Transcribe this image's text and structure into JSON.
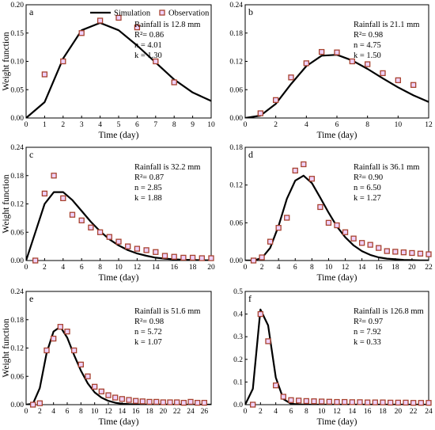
{
  "legend": {
    "simulation": "Simulation",
    "observation": "Observation"
  },
  "colors": {
    "simulation": "#000000",
    "marker_edge": "#a8422e",
    "marker_fill": "#efd2ff"
  },
  "chart_data": [
    {
      "type": "line",
      "panel": "a",
      "info": [
        "Rainfall is 12.8 mm",
        "R²= 0.86",
        "n = 4.01",
        "k = 1.30"
      ],
      "xlabel": "Time (day)",
      "ylabel": "Weight function",
      "xlim": [
        0,
        10
      ],
      "ylim": [
        0,
        0.2
      ],
      "xticks": [
        0,
        1,
        2,
        3,
        4,
        5,
        6,
        7,
        8,
        9,
        10
      ],
      "yticks": [
        0.0,
        0.05,
        0.1,
        0.15,
        0.2
      ],
      "ytick_labels": [
        "0.00",
        "0.05",
        "0.10",
        "0.15",
        "0.20"
      ],
      "series": [
        {
          "name": "Simulation",
          "x": [
            0,
            1,
            2,
            3,
            4,
            5,
            6,
            7,
            8,
            9,
            10
          ],
          "y": [
            0.0,
            0.028,
            0.105,
            0.155,
            0.168,
            0.155,
            0.128,
            0.098,
            0.068,
            0.045,
            0.03
          ]
        },
        {
          "name": "Observation",
          "x": [
            1,
            2,
            3,
            4,
            5,
            6,
            7,
            8
          ],
          "y": [
            0.077,
            0.1,
            0.15,
            0.172,
            0.177,
            0.16,
            0.1,
            0.063
          ]
        }
      ]
    },
    {
      "type": "line",
      "panel": "b",
      "info": [
        "Rainfall is 21.1 mm",
        "R²= 0.98",
        "n = 4.75",
        "k = 1.50"
      ],
      "xlabel": "Time (day)",
      "ylabel": "",
      "xlim": [
        0,
        12
      ],
      "ylim": [
        0,
        0.24
      ],
      "xticks": [
        0,
        2,
        4,
        6,
        8,
        10,
        12
      ],
      "yticks": [
        0.0,
        0.06,
        0.12,
        0.18,
        0.24
      ],
      "ytick_labels": [
        "0.00",
        "0.06",
        "0.12",
        "0.18",
        "0.24"
      ],
      "series": [
        {
          "name": "Simulation",
          "x": [
            0,
            1,
            2,
            3,
            4,
            5,
            6,
            7,
            8,
            9,
            10,
            11,
            12
          ],
          "y": [
            0.0,
            0.005,
            0.03,
            0.072,
            0.11,
            0.132,
            0.134,
            0.122,
            0.104,
            0.084,
            0.065,
            0.048,
            0.034
          ]
        },
        {
          "name": "Observation",
          "x": [
            1,
            2,
            3,
            4,
            5,
            6,
            7,
            8,
            9,
            10,
            11
          ],
          "y": [
            0.01,
            0.038,
            0.086,
            0.116,
            0.14,
            0.139,
            0.12,
            0.114,
            0.095,
            0.08,
            0.07
          ]
        }
      ]
    },
    {
      "type": "line",
      "panel": "c",
      "info": [
        "Rainfall is 32.2 mm",
        "R²= 0.87",
        "n = 2.85",
        "k = 1.88"
      ],
      "xlabel": "Time (day)",
      "ylabel": "Weight function",
      "xlim": [
        0,
        20
      ],
      "ylim": [
        0,
        0.24
      ],
      "xticks": [
        0,
        2,
        4,
        6,
        8,
        10,
        12,
        14,
        16,
        18,
        20
      ],
      "yticks": [
        0.0,
        0.06,
        0.12,
        0.18,
        0.24
      ],
      "ytick_labels": [
        "0.00",
        "0.06",
        "0.12",
        "0.18",
        "0.24"
      ],
      "series": [
        {
          "name": "Simulation",
          "x": [
            0,
            1,
            2,
            3,
            4,
            5,
            6,
            7,
            8,
            9,
            10,
            11,
            12,
            13,
            14,
            15,
            16,
            17,
            18,
            19,
            20
          ],
          "y": [
            0.0,
            0.06,
            0.12,
            0.145,
            0.145,
            0.128,
            0.105,
            0.082,
            0.062,
            0.045,
            0.032,
            0.022,
            0.015,
            0.01,
            0.006,
            0.004,
            0.0025,
            0.0015,
            0.001,
            0.0006,
            0.0004
          ]
        },
        {
          "name": "Observation",
          "x": [
            1,
            2,
            3,
            4,
            5,
            6,
            7,
            8,
            9,
            10,
            11,
            12,
            13,
            14,
            15,
            16,
            17,
            18,
            19,
            20
          ],
          "y": [
            0.0,
            0.142,
            0.18,
            0.132,
            0.097,
            0.085,
            0.07,
            0.06,
            0.05,
            0.04,
            0.03,
            0.025,
            0.022,
            0.018,
            0.01,
            0.008,
            0.006,
            0.006,
            0.005,
            0.005
          ]
        }
      ]
    },
    {
      "type": "line",
      "panel": "d",
      "info": [
        "Rainfall is 36.1 mm",
        "R²= 0.90",
        "n = 6.50",
        "k = 1.27"
      ],
      "xlabel": "Time (day)",
      "ylabel": "",
      "xlim": [
        0,
        22
      ],
      "ylim": [
        0,
        0.18
      ],
      "xticks": [
        0,
        2,
        4,
        6,
        8,
        10,
        12,
        14,
        16,
        18,
        20,
        22
      ],
      "yticks": [
        0.0,
        0.06,
        0.12,
        0.18
      ],
      "ytick_labels": [
        "0.00",
        "0.06",
        "0.12",
        "0.18"
      ],
      "series": [
        {
          "name": "Simulation",
          "x": [
            0,
            1,
            2,
            3,
            4,
            5,
            6,
            7,
            8,
            9,
            10,
            11,
            12,
            13,
            14,
            15,
            16,
            17,
            18,
            19,
            20,
            21,
            22
          ],
          "y": [
            0.0,
            0.0,
            0.004,
            0.02,
            0.055,
            0.098,
            0.127,
            0.135,
            0.123,
            0.1,
            0.076,
            0.054,
            0.037,
            0.024,
            0.015,
            0.009,
            0.005,
            0.003,
            0.002,
            0.001,
            0.0006,
            0.0003,
            0.0002
          ]
        },
        {
          "name": "Observation",
          "x": [
            1,
            2,
            3,
            4,
            5,
            6,
            7,
            8,
            9,
            10,
            11,
            12,
            13,
            14,
            15,
            16,
            17,
            18,
            19,
            20,
            21,
            22
          ],
          "y": [
            0.0,
            0.005,
            0.03,
            0.052,
            0.068,
            0.143,
            0.153,
            0.13,
            0.085,
            0.06,
            0.056,
            0.045,
            0.035,
            0.028,
            0.025,
            0.02,
            0.015,
            0.014,
            0.013,
            0.012,
            0.011,
            0.01
          ]
        }
      ]
    },
    {
      "type": "line",
      "panel": "e",
      "info": [
        "Rainfall is 51.6 mm",
        "R²= 0.98",
        "n = 5.72",
        "k = 1.07"
      ],
      "xlabel": "Time (day)",
      "ylabel": "Weight function",
      "xlim": [
        0,
        27
      ],
      "ylim": [
        0,
        0.24
      ],
      "xticks": [
        0,
        2,
        4,
        6,
        8,
        10,
        12,
        14,
        16,
        18,
        20,
        22,
        24,
        26
      ],
      "yticks": [
        0.0,
        0.06,
        0.12,
        0.18,
        0.24
      ],
      "ytick_labels": [
        "0.00",
        "0.06",
        "0.12",
        "0.18",
        "0.24"
      ],
      "series": [
        {
          "name": "Simulation",
          "x": [
            0,
            1,
            2,
            3,
            4,
            5,
            6,
            7,
            8,
            9,
            10,
            11,
            12,
            13,
            14,
            15,
            16,
            17,
            18,
            20,
            22,
            24,
            26,
            27
          ],
          "y": [
            0.0,
            0.002,
            0.035,
            0.11,
            0.155,
            0.165,
            0.142,
            0.105,
            0.072,
            0.045,
            0.026,
            0.015,
            0.008,
            0.004,
            0.002,
            0.001,
            0.0006,
            0.0003,
            0.0002,
            0.0001,
            0.0,
            0.0,
            0.0,
            0.0
          ]
        },
        {
          "name": "Observation",
          "x": [
            1,
            2,
            3,
            4,
            5,
            6,
            7,
            8,
            9,
            10,
            11,
            12,
            13,
            14,
            15,
            16,
            17,
            18,
            19,
            20,
            21,
            22,
            23,
            24,
            25,
            26
          ],
          "y": [
            0.0,
            0.003,
            0.115,
            0.14,
            0.165,
            0.155,
            0.115,
            0.085,
            0.06,
            0.038,
            0.028,
            0.02,
            0.015,
            0.012,
            0.01,
            0.008,
            0.007,
            0.006,
            0.006,
            0.005,
            0.005,
            0.005,
            0.004,
            0.006,
            0.004,
            0.004
          ]
        }
      ]
    },
    {
      "type": "line",
      "panel": "f",
      "info": [
        "Rainfall is 126.8 mm",
        "R²= 0.97",
        "n = 7.92",
        "k = 0.33"
      ],
      "xlabel": "Time (day)",
      "ylabel": "",
      "xlim": [
        0,
        24
      ],
      "ylim": [
        0,
        0.5
      ],
      "xticks": [
        0,
        2,
        4,
        6,
        8,
        10,
        12,
        14,
        16,
        18,
        20,
        22,
        24
      ],
      "yticks": [
        0.0,
        0.1,
        0.2,
        0.3,
        0.4,
        0.5
      ],
      "ytick_labels": [
        "0.0",
        "0.1",
        "0.2",
        "0.3",
        "0.4",
        "0.5"
      ],
      "series": [
        {
          "name": "Simulation",
          "x": [
            0,
            1,
            2,
            3,
            4,
            5,
            6,
            7,
            8,
            10,
            12,
            24
          ],
          "y": [
            0.0,
            0.07,
            0.42,
            0.35,
            0.12,
            0.025,
            0.004,
            0.001,
            0.0,
            0.0,
            0.0,
            0.0
          ]
        },
        {
          "name": "Observation",
          "x": [
            1,
            2,
            3,
            4,
            5,
            6,
            7,
            8,
            9,
            10,
            11,
            12,
            13,
            14,
            15,
            16,
            17,
            18,
            19,
            20,
            21,
            22,
            23,
            24
          ],
          "y": [
            0.0,
            0.4,
            0.28,
            0.085,
            0.035,
            0.02,
            0.018,
            0.016,
            0.015,
            0.014,
            0.013,
            0.012,
            0.012,
            0.011,
            0.011,
            0.01,
            0.01,
            0.01,
            0.009,
            0.009,
            0.009,
            0.008,
            0.008,
            0.008
          ]
        }
      ]
    }
  ]
}
